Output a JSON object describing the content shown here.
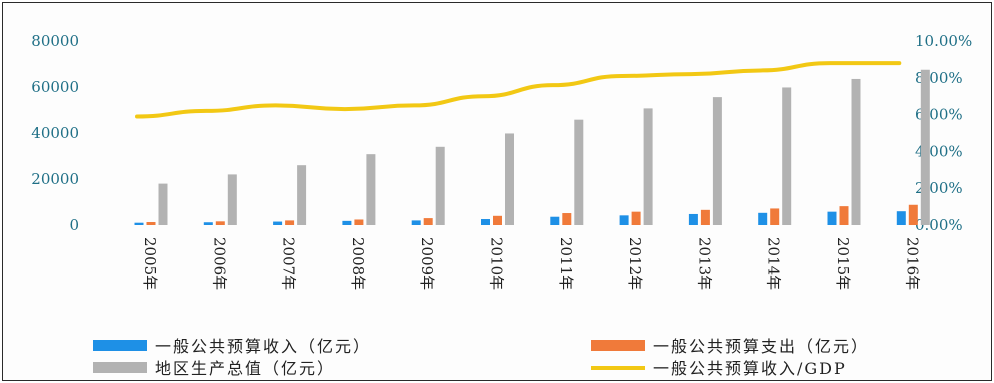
{
  "colors": {
    "revenue": "#1e90e6",
    "expenditure": "#f07a3a",
    "gdp": "#b2b2b2",
    "ratio": "#f2c814",
    "tick_text": "#1f6f86"
  },
  "chart_data": {
    "type": "bar",
    "categories": [
      "2005年",
      "2006年",
      "2007年",
      "2008年",
      "2009年",
      "2010年",
      "2011年",
      "2012年",
      "2013年",
      "2014年",
      "2015年",
      "2016年"
    ],
    "series": [
      {
        "name": "一般公共预算收入（亿元）",
        "type": "bar",
        "axis": "left",
        "values": [
          1000,
          1200,
          1500,
          1800,
          2000,
          2600,
          3600,
          4200,
          4800,
          5300,
          5800,
          6000
        ]
      },
      {
        "name": "一般公共预算支出（亿元）",
        "type": "bar",
        "axis": "left",
        "values": [
          1300,
          1600,
          2000,
          2400,
          3000,
          4000,
          5200,
          5800,
          6600,
          7200,
          8200,
          8800
        ]
      },
      {
        "name": "地区生产总值（亿元）",
        "type": "bar",
        "axis": "left",
        "values": [
          18000,
          22000,
          26000,
          30800,
          34000,
          39800,
          45800,
          50700,
          55600,
          59800,
          63500,
          67500
        ]
      },
      {
        "name": "一般公共预算收入/GDP",
        "type": "line",
        "axis": "right",
        "values": [
          5.9,
          6.2,
          6.5,
          6.3,
          6.5,
          7.0,
          7.6,
          8.1,
          8.2,
          8.4,
          8.8,
          8.8
        ]
      }
    ],
    "y_left": {
      "ticks": [
        "0",
        "20000",
        "40000",
        "60000",
        "80000"
      ],
      "min": 0,
      "max": 80000
    },
    "y_right": {
      "ticks": [
        "0.00%",
        "2.00%",
        "4.00%",
        "6.00%",
        "8.00%",
        "10.00%"
      ],
      "min": 0,
      "max": 10
    },
    "legend": {
      "position": "bottom",
      "items": [
        {
          "label": "一般公共预算收入（亿元）",
          "marker": "bar",
          "color": "#1e90e6"
        },
        {
          "label": "一般公共预算支出（亿元）",
          "marker": "bar",
          "color": "#f07a3a"
        },
        {
          "label": "地区生产总值（亿元）",
          "marker": "bar",
          "color": "#b2b2b2"
        },
        {
          "label": "一般公共预算收入/GDP",
          "marker": "line",
          "color": "#f2c814"
        }
      ]
    },
    "grid": false
  }
}
